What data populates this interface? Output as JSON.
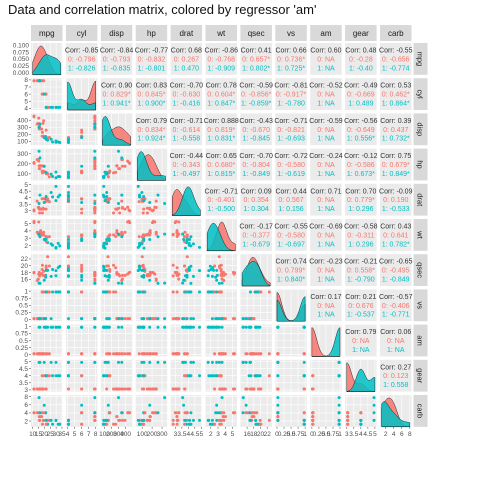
{
  "title": "Data and correlation matrix, colored by regressor 'am'",
  "colors": {
    "group0": "#F8766D",
    "group1": "#00BFC4",
    "panel_bg": "#EBEBEB",
    "strip_bg": "#D9D9D9",
    "grid": "#FFFFFF"
  },
  "chart_data": {
    "type": "scatter-matrix",
    "variables": [
      "mpg",
      "cyl",
      "disp",
      "hp",
      "drat",
      "wt",
      "qsec",
      "vs",
      "am",
      "gear",
      "carb"
    ],
    "group_variable": "am",
    "groups": [
      "0",
      "1"
    ],
    "correlations": {
      "mpg": {
        "cyl": [
          "-0.85",
          "-0.796",
          "-0.826"
        ],
        "disp": [
          "-0.84",
          "-0.793",
          "-0.835"
        ],
        "hp": [
          "-0.77",
          "-0.832",
          "-0.801"
        ],
        "drat": [
          "0.68",
          "0.267",
          "0.470"
        ],
        "wt": [
          "-0.86",
          "-0.768",
          "-0.909"
        ],
        "qsec": [
          "0.41",
          "0.657*",
          "0.802*"
        ],
        "vs": [
          "0.66",
          "0.736*",
          "0.725*"
        ],
        "am": [
          "0.60",
          "NA",
          "NA"
        ],
        "gear": [
          "0.48",
          "-0.28",
          "-0.40"
        ],
        "carb": [
          "-0.55",
          "-0.656",
          "-0.774"
        ]
      },
      "cyl": {
        "disp": [
          "0.90",
          "0.829*",
          "0.941*"
        ],
        "hp": [
          "0.83",
          "0.845*",
          "0.900*"
        ],
        "drat": [
          "-0.70",
          "-0.630",
          "-0.416"
        ],
        "wt": [
          "0.78",
          "0.604*",
          "0.847*"
        ],
        "qsec": [
          "-0.59",
          "-0.856*",
          "-0.859*"
        ],
        "vs": [
          "-0.81",
          "-0.917*",
          "-0.780"
        ],
        "am": [
          "-0.52",
          "NA",
          "NA"
        ],
        "gear": [
          "-0.49",
          "-0.669",
          "0.489"
        ],
        "carb": [
          "0.53",
          "0.462*",
          "0.864*"
        ]
      },
      "disp": {
        "hp": [
          "0.79",
          "0.834*",
          "0.924*"
        ],
        "drat": [
          "-0.71",
          "-0.614",
          "-0.558"
        ],
        "wt": [
          "0.888",
          "0.819*",
          "0.831*"
        ],
        "qsec": [
          "-0.43",
          "-0.670",
          "-0.845"
        ],
        "vs": [
          "-0.71",
          "-0.821",
          "-0.693"
        ],
        "am": [
          "-0.59",
          "NA",
          "NA"
        ],
        "gear": [
          "-0.56",
          "-0.649",
          "0.556*"
        ],
        "carb": [
          "0.39",
          "0.437",
          "0.732*"
        ]
      },
      "hp": {
        "drat": [
          "-0.44",
          "-0.343",
          "-0.497"
        ],
        "wt": [
          "0.65",
          "0.680*",
          "0.815*"
        ],
        "qsec": [
          "-0.70",
          "-0.804",
          "-0.849"
        ],
        "vs": [
          "-0.72",
          "-0.580",
          "-0.619"
        ],
        "am": [
          "-0.24",
          "NA",
          "NA"
        ],
        "gear": [
          "-0.12",
          "-0.586",
          "0.673*"
        ],
        "carb": [
          "0.75",
          "0.679*",
          "0.849*"
        ]
      },
      "drat": {
        "wt": [
          "-0.71",
          "-0.401",
          "-0.500"
        ],
        "qsec": [
          "0.09",
          "0.354",
          "0.304"
        ],
        "vs": [
          "0.44",
          "0.567",
          "0.156"
        ],
        "am": [
          "0.71",
          "NA",
          "NA"
        ],
        "gear": [
          "0.70",
          "0.779*",
          "0.296"
        ],
        "carb": [
          "-0.09",
          "0.190",
          "-0.533"
        ]
      },
      "wt": {
        "qsec": [
          "-0.17",
          "-0.377",
          "-0.679"
        ],
        "vs": [
          "-0.55",
          "-0.580",
          "-0.697"
        ],
        "am": [
          "-0.69",
          "NA",
          "NA"
        ],
        "gear": [
          "-0.58",
          "-0.311",
          "0.296"
        ],
        "carb": [
          "0.43",
          "0.641",
          "0.782*"
        ]
      },
      "qsec": {
        "vs": [
          "0.74",
          "0.799*",
          "0.840*"
        ],
        "am": [
          "-0.23",
          "NA",
          "NA"
        ],
        "gear": [
          "-0.21",
          "0.558*",
          "-0.790"
        ],
        "carb": [
          "-0.65",
          "-0.495",
          "-0.849"
        ]
      },
      "vs": {
        "am": [
          "0.17",
          "NA",
          "NA"
        ],
        "gear": [
          "0.21",
          "0.676",
          "-0.537"
        ],
        "carb": [
          "-0.57",
          "-0.406",
          "-0.771"
        ]
      },
      "am": {
        "gear": [
          "0.79",
          "NA",
          "NA"
        ],
        "carb": [
          "0.06",
          "NA",
          "NA"
        ]
      },
      "gear": {
        "carb": [
          "0.27",
          "0.123",
          "0.558"
        ]
      }
    },
    "corr_prefix": "Corr:",
    "group_prefixes": [
      "0:",
      "1:"
    ],
    "axes": {
      "mpg": {
        "range": [
          10,
          34
        ],
        "ticks": [
          10,
          15,
          20,
          25,
          30,
          35
        ]
      },
      "cyl": {
        "range": [
          4,
          8
        ],
        "ticks": [
          4,
          5,
          6,
          7,
          8
        ]
      },
      "disp": {
        "range": [
          70,
          472
        ],
        "ticks": [
          100,
          200,
          300,
          400
        ]
      },
      "hp": {
        "range": [
          52,
          335
        ],
        "ticks": [
          100,
          200,
          300
        ]
      },
      "drat": {
        "range": [
          2.76,
          4.93
        ],
        "ticks": [
          3.0,
          3.5,
          4.0,
          4.5,
          5.0
        ]
      },
      "wt": {
        "range": [
          1.5,
          5.4
        ],
        "ticks": [
          2,
          3,
          4,
          5
        ]
      },
      "qsec": {
        "range": [
          14.5,
          22.9
        ],
        "ticks": [
          16,
          18,
          20,
          22
        ]
      },
      "vs": {
        "range": [
          0,
          1
        ],
        "ticks": [
          0.0,
          0.25,
          0.5,
          0.75,
          1.0
        ]
      },
      "am": {
        "range": [
          0,
          1
        ],
        "ticks": [
          0.0,
          0.25,
          0.5,
          0.75,
          1.0
        ]
      },
      "gear": {
        "range": [
          3,
          5
        ],
        "ticks": [
          3.0,
          3.5,
          4.0,
          4.5,
          5.0
        ]
      },
      "carb": {
        "range": [
          1,
          8
        ],
        "ticks": [
          2,
          4,
          6,
          8
        ]
      }
    },
    "observations": [
      {
        "mpg": 21.0,
        "cyl": 6,
        "disp": 160,
        "hp": 110,
        "drat": 3.9,
        "wt": 2.62,
        "qsec": 16.46,
        "vs": 0,
        "am": 1,
        "gear": 4,
        "carb": 4
      },
      {
        "mpg": 21.0,
        "cyl": 6,
        "disp": 160,
        "hp": 110,
        "drat": 3.9,
        "wt": 2.875,
        "qsec": 17.02,
        "vs": 0,
        "am": 1,
        "gear": 4,
        "carb": 4
      },
      {
        "mpg": 22.8,
        "cyl": 4,
        "disp": 108,
        "hp": 93,
        "drat": 3.85,
        "wt": 2.32,
        "qsec": 18.61,
        "vs": 1,
        "am": 1,
        "gear": 4,
        "carb": 1
      },
      {
        "mpg": 21.4,
        "cyl": 6,
        "disp": 258,
        "hp": 110,
        "drat": 3.08,
        "wt": 3.215,
        "qsec": 19.44,
        "vs": 1,
        "am": 0,
        "gear": 3,
        "carb": 1
      },
      {
        "mpg": 18.7,
        "cyl": 8,
        "disp": 360,
        "hp": 175,
        "drat": 3.15,
        "wt": 3.44,
        "qsec": 17.02,
        "vs": 0,
        "am": 0,
        "gear": 3,
        "carb": 2
      },
      {
        "mpg": 18.1,
        "cyl": 6,
        "disp": 225,
        "hp": 105,
        "drat": 2.76,
        "wt": 3.46,
        "qsec": 20.22,
        "vs": 1,
        "am": 0,
        "gear": 3,
        "carb": 1
      },
      {
        "mpg": 14.3,
        "cyl": 8,
        "disp": 360,
        "hp": 245,
        "drat": 3.21,
        "wt": 3.57,
        "qsec": 15.84,
        "vs": 0,
        "am": 0,
        "gear": 3,
        "carb": 4
      },
      {
        "mpg": 24.4,
        "cyl": 4,
        "disp": 146.7,
        "hp": 62,
        "drat": 3.69,
        "wt": 3.19,
        "qsec": 20.0,
        "vs": 1,
        "am": 0,
        "gear": 4,
        "carb": 2
      },
      {
        "mpg": 22.8,
        "cyl": 4,
        "disp": 140.8,
        "hp": 95,
        "drat": 3.92,
        "wt": 3.15,
        "qsec": 22.9,
        "vs": 1,
        "am": 0,
        "gear": 4,
        "carb": 2
      },
      {
        "mpg": 19.2,
        "cyl": 6,
        "disp": 167.6,
        "hp": 123,
        "drat": 3.92,
        "wt": 3.44,
        "qsec": 18.3,
        "vs": 1,
        "am": 0,
        "gear": 4,
        "carb": 4
      },
      {
        "mpg": 17.8,
        "cyl": 6,
        "disp": 167.6,
        "hp": 123,
        "drat": 3.92,
        "wt": 3.44,
        "qsec": 18.9,
        "vs": 1,
        "am": 0,
        "gear": 4,
        "carb": 4
      },
      {
        "mpg": 16.4,
        "cyl": 8,
        "disp": 275.8,
        "hp": 180,
        "drat": 3.07,
        "wt": 4.07,
        "qsec": 17.4,
        "vs": 0,
        "am": 0,
        "gear": 3,
        "carb": 3
      },
      {
        "mpg": 17.3,
        "cyl": 8,
        "disp": 275.8,
        "hp": 180,
        "drat": 3.07,
        "wt": 3.73,
        "qsec": 17.6,
        "vs": 0,
        "am": 0,
        "gear": 3,
        "carb": 3
      },
      {
        "mpg": 15.2,
        "cyl": 8,
        "disp": 275.8,
        "hp": 180,
        "drat": 3.07,
        "wt": 3.78,
        "qsec": 18.0,
        "vs": 0,
        "am": 0,
        "gear": 3,
        "carb": 3
      },
      {
        "mpg": 10.4,
        "cyl": 8,
        "disp": 472,
        "hp": 205,
        "drat": 2.93,
        "wt": 5.25,
        "qsec": 17.98,
        "vs": 0,
        "am": 0,
        "gear": 3,
        "carb": 4
      },
      {
        "mpg": 10.4,
        "cyl": 8,
        "disp": 460,
        "hp": 215,
        "drat": 3.0,
        "wt": 5.424,
        "qsec": 17.82,
        "vs": 0,
        "am": 0,
        "gear": 3,
        "carb": 4
      },
      {
        "mpg": 14.7,
        "cyl": 8,
        "disp": 440,
        "hp": 230,
        "drat": 3.23,
        "wt": 5.345,
        "qsec": 17.42,
        "vs": 0,
        "am": 0,
        "gear": 3,
        "carb": 4
      },
      {
        "mpg": 32.4,
        "cyl": 4,
        "disp": 78.7,
        "hp": 66,
        "drat": 4.08,
        "wt": 2.2,
        "qsec": 19.47,
        "vs": 1,
        "am": 1,
        "gear": 4,
        "carb": 1
      },
      {
        "mpg": 30.4,
        "cyl": 4,
        "disp": 75.7,
        "hp": 52,
        "drat": 4.93,
        "wt": 1.615,
        "qsec": 18.52,
        "vs": 1,
        "am": 1,
        "gear": 4,
        "carb": 2
      },
      {
        "mpg": 33.9,
        "cyl": 4,
        "disp": 71.1,
        "hp": 65,
        "drat": 4.22,
        "wt": 1.835,
        "qsec": 19.9,
        "vs": 1,
        "am": 1,
        "gear": 4,
        "carb": 1
      },
      {
        "mpg": 21.5,
        "cyl": 4,
        "disp": 120.1,
        "hp": 97,
        "drat": 3.7,
        "wt": 2.465,
        "qsec": 20.01,
        "vs": 1,
        "am": 0,
        "gear": 3,
        "carb": 1
      },
      {
        "mpg": 15.5,
        "cyl": 8,
        "disp": 318,
        "hp": 150,
        "drat": 2.76,
        "wt": 3.52,
        "qsec": 16.87,
        "vs": 0,
        "am": 0,
        "gear": 3,
        "carb": 2
      },
      {
        "mpg": 15.2,
        "cyl": 8,
        "disp": 304,
        "hp": 150,
        "drat": 3.15,
        "wt": 3.435,
        "qsec": 17.3,
        "vs": 0,
        "am": 0,
        "gear": 3,
        "carb": 2
      },
      {
        "mpg": 13.3,
        "cyl": 8,
        "disp": 350,
        "hp": 245,
        "drat": 3.73,
        "wt": 3.84,
        "qsec": 15.41,
        "vs": 0,
        "am": 0,
        "gear": 3,
        "carb": 4
      },
      {
        "mpg": 19.2,
        "cyl": 8,
        "disp": 400,
        "hp": 175,
        "drat": 3.08,
        "wt": 3.845,
        "qsec": 17.05,
        "vs": 0,
        "am": 0,
        "gear": 3,
        "carb": 2
      },
      {
        "mpg": 27.3,
        "cyl": 4,
        "disp": 79,
        "hp": 66,
        "drat": 4.08,
        "wt": 1.935,
        "qsec": 18.9,
        "vs": 1,
        "am": 1,
        "gear": 4,
        "carb": 1
      },
      {
        "mpg": 26.0,
        "cyl": 4,
        "disp": 120.3,
        "hp": 91,
        "drat": 4.43,
        "wt": 2.14,
        "qsec": 16.7,
        "vs": 0,
        "am": 1,
        "gear": 5,
        "carb": 2
      },
      {
        "mpg": 30.4,
        "cyl": 4,
        "disp": 95.1,
        "hp": 113,
        "drat": 3.77,
        "wt": 1.513,
        "qsec": 16.9,
        "vs": 1,
        "am": 1,
        "gear": 5,
        "carb": 2
      },
      {
        "mpg": 15.8,
        "cyl": 8,
        "disp": 351,
        "hp": 264,
        "drat": 4.22,
        "wt": 3.17,
        "qsec": 14.5,
        "vs": 0,
        "am": 1,
        "gear": 5,
        "carb": 4
      },
      {
        "mpg": 19.7,
        "cyl": 6,
        "disp": 145,
        "hp": 175,
        "drat": 3.62,
        "wt": 2.77,
        "qsec": 15.5,
        "vs": 0,
        "am": 1,
        "gear": 5,
        "carb": 6
      },
      {
        "mpg": 15.0,
        "cyl": 8,
        "disp": 301,
        "hp": 335,
        "drat": 3.54,
        "wt": 3.57,
        "qsec": 14.6,
        "vs": 0,
        "am": 1,
        "gear": 5,
        "carb": 8
      },
      {
        "mpg": 21.4,
        "cyl": 4,
        "disp": 121,
        "hp": 109,
        "drat": 4.11,
        "wt": 2.78,
        "qsec": 18.6,
        "vs": 1,
        "am": 1,
        "gear": 4,
        "carb": 2
      }
    ]
  }
}
